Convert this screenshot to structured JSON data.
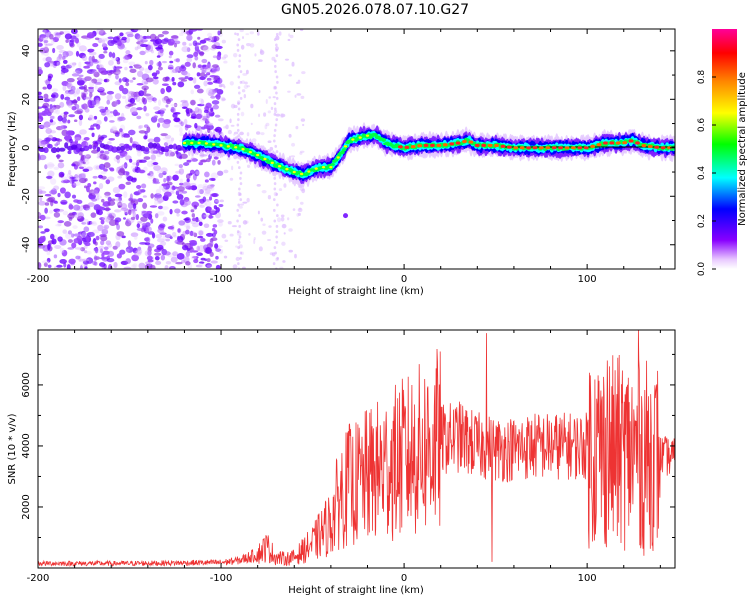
{
  "figure": {
    "title": "GN05.2026.078.07.10.G27"
  },
  "chart_data": [
    {
      "type": "heatmap",
      "title": "GN05.2026.078.07.10.G27",
      "xlabel": "Height of straight line (km)",
      "ylabel": "Frequency (Hz)",
      "xlim": [
        -200,
        148
      ],
      "ylim": [
        -50,
        49
      ],
      "xticks": [
        -200,
        -100,
        0,
        100
      ],
      "yticks": [
        -40,
        -20,
        0,
        20,
        40
      ],
      "colorbar": {
        "label": "Normalized spectral amplitude",
        "range": [
          0.0,
          1.0
        ],
        "ticks": [
          0.0,
          0.2,
          0.4,
          0.6,
          0.8
        ],
        "tick_labels": [
          "0.0",
          "0.2",
          "0.4",
          "0.6",
          "0.8"
        ],
        "colormap": [
          "#ffffff",
          "#8800ff",
          "#0000ff",
          "#00ffff",
          "#00ff00",
          "#ffff00",
          "#ff8800",
          "#ff0000",
          "#ff00aa"
        ]
      },
      "ridge": {
        "description": "dominant frequency trace",
        "x": [
          -120,
          -110,
          -100,
          -90,
          -80,
          -75,
          -70,
          -60,
          -55,
          -50,
          -45,
          -40,
          -35,
          -30,
          -25,
          -20,
          -15,
          -10,
          -5,
          0,
          10,
          20,
          30,
          35,
          40,
          50,
          60,
          80,
          100,
          110,
          120,
          125,
          130,
          140,
          148
        ],
        "freq": [
          2,
          2,
          1,
          0,
          -3,
          -5,
          -7,
          -10,
          -11,
          -9,
          -8,
          -8,
          -3,
          3,
          4,
          5,
          5,
          2,
          1,
          0,
          1,
          1,
          2,
          3,
          1,
          1,
          0,
          0,
          0,
          2,
          2,
          3,
          1,
          0,
          0
        ]
      },
      "noise_region": {
        "x_range": [
          -200,
          -100
        ],
        "note": "scattered low-amplitude purple noise across all frequencies"
      }
    },
    {
      "type": "line",
      "xlabel": "Height of straight line (km)",
      "ylabel": "SNR (10 * v/v)",
      "xlim": [
        -200,
        148
      ],
      "ylim": [
        0,
        7800
      ],
      "xticks": [
        -200,
        -100,
        0,
        100
      ],
      "yticks": [
        2000,
        4000,
        6000
      ],
      "line_color": "#ee3333",
      "envelope": {
        "x": [
          -200,
          -150,
          -100,
          -90,
          -80,
          -75,
          -70,
          -65,
          -60,
          -50,
          -40,
          -35,
          -30,
          -25,
          -20,
          -10,
          0,
          10,
          20,
          30,
          40,
          50,
          60,
          70,
          80,
          90,
          100,
          110,
          120,
          130,
          140,
          148
        ],
        "y": [
          150,
          150,
          180,
          250,
          450,
          700,
          350,
          300,
          350,
          800,
          1500,
          2400,
          2700,
          2800,
          3000,
          3300,
          3600,
          3900,
          4200,
          4300,
          4000,
          3900,
          3900,
          4000,
          4000,
          4000,
          4000,
          3800,
          3800,
          3700,
          3700,
          3600
        ]
      },
      "spikes": [
        {
          "x": -30,
          "y": 4700
        },
        {
          "x": -28,
          "y": 4300
        },
        {
          "x": 45,
          "y": 7700
        },
        {
          "x": 48,
          "y": 200
        },
        {
          "x": 111,
          "y": 6800
        },
        {
          "x": 128,
          "y": 7800
        },
        {
          "x": 131,
          "y": 400
        }
      ]
    }
  ]
}
